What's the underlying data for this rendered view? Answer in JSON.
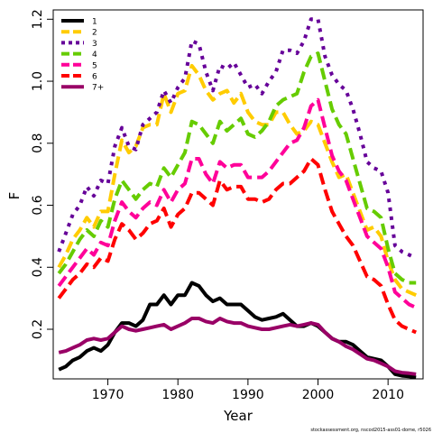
{
  "chart_data": {
    "type": "line",
    "xlabel": "Year",
    "ylabel": "F",
    "xlim": [
      1962.2,
      2015
    ],
    "ylim": [
      0.04,
      1.23
    ],
    "xticks": [
      1970,
      1980,
      1990,
      2000,
      2010
    ],
    "yticks": [
      0.2,
      0.4,
      0.6,
      0.8,
      1.0,
      1.2
    ],
    "yticklabels": [
      "0.2",
      "0.4",
      "0.6",
      "0.8",
      "1.0",
      "1.2"
    ],
    "grid": false,
    "legend_position": "top-left",
    "x": [
      1963,
      1964,
      1965,
      1966,
      1967,
      1968,
      1969,
      1970,
      1971,
      1972,
      1973,
      1974,
      1975,
      1976,
      1977,
      1978,
      1979,
      1980,
      1981,
      1982,
      1983,
      1984,
      1985,
      1986,
      1987,
      1988,
      1989,
      1990,
      1991,
      1992,
      1993,
      1994,
      1995,
      1996,
      1997,
      1998,
      1999,
      2000,
      2001,
      2002,
      2003,
      2004,
      2005,
      2006,
      2007,
      2008,
      2009,
      2010,
      2011,
      2012,
      2013,
      2014
    ],
    "series": [
      {
        "name": "1",
        "color": "#000000",
        "dash": "solid",
        "values": [
          0.07,
          0.08,
          0.1,
          0.11,
          0.13,
          0.14,
          0.13,
          0.15,
          0.19,
          0.22,
          0.22,
          0.21,
          0.23,
          0.28,
          0.28,
          0.31,
          0.28,
          0.31,
          0.31,
          0.35,
          0.34,
          0.31,
          0.29,
          0.3,
          0.28,
          0.28,
          0.28,
          0.26,
          0.24,
          0.23,
          0.235,
          0.24,
          0.25,
          0.23,
          0.21,
          0.21,
          0.22,
          0.21,
          0.19,
          0.17,
          0.16,
          0.16,
          0.15,
          0.13,
          0.11,
          0.105,
          0.1,
          0.08,
          0.055,
          0.05,
          0.048,
          0.045
        ]
      },
      {
        "name": "2",
        "color": "#FFCC00",
        "dash": "dash",
        "values": [
          0.4,
          0.44,
          0.49,
          0.52,
          0.56,
          0.53,
          0.58,
          0.58,
          0.7,
          0.81,
          0.77,
          0.79,
          0.85,
          0.86,
          0.86,
          0.96,
          0.9,
          0.96,
          0.97,
          1.05,
          1.02,
          0.97,
          0.94,
          0.96,
          0.97,
          0.93,
          0.96,
          0.9,
          0.87,
          0.86,
          0.86,
          0.9,
          0.9,
          0.86,
          0.83,
          0.84,
          0.87,
          0.86,
          0.8,
          0.74,
          0.69,
          0.7,
          0.64,
          0.58,
          0.52,
          0.53,
          0.5,
          0.42,
          0.36,
          0.33,
          0.32,
          0.31
        ]
      },
      {
        "name": "3",
        "color": "#660099",
        "dash": "dot",
        "values": [
          0.45,
          0.51,
          0.57,
          0.6,
          0.66,
          0.63,
          0.68,
          0.67,
          0.79,
          0.85,
          0.79,
          0.78,
          0.86,
          0.88,
          0.9,
          0.97,
          0.93,
          0.98,
          1.01,
          1.13,
          1.12,
          1.03,
          0.97,
          1.05,
          1.04,
          1.06,
          1.02,
          0.98,
          0.99,
          0.96,
          1.0,
          1.03,
          1.1,
          1.1,
          1.09,
          1.13,
          1.2,
          1.2,
          1.08,
          1.02,
          0.99,
          0.97,
          0.91,
          0.83,
          0.74,
          0.72,
          0.71,
          0.64,
          0.47,
          0.45,
          0.44,
          0.43
        ]
      },
      {
        "name": "4",
        "color": "#66CC00",
        "dash": "dash",
        "values": [
          0.38,
          0.41,
          0.45,
          0.49,
          0.52,
          0.5,
          0.55,
          0.53,
          0.62,
          0.68,
          0.65,
          0.62,
          0.65,
          0.67,
          0.66,
          0.72,
          0.69,
          0.73,
          0.77,
          0.87,
          0.86,
          0.83,
          0.8,
          0.87,
          0.84,
          0.86,
          0.88,
          0.83,
          0.82,
          0.84,
          0.87,
          0.92,
          0.94,
          0.95,
          0.96,
          1.03,
          1.08,
          1.09,
          1.0,
          0.91,
          0.86,
          0.83,
          0.75,
          0.67,
          0.59,
          0.58,
          0.56,
          0.46,
          0.38,
          0.36,
          0.35,
          0.35
        ]
      },
      {
        "name": "5",
        "color": "#FF0099",
        "dash": "dash",
        "values": [
          0.34,
          0.37,
          0.4,
          0.43,
          0.46,
          0.44,
          0.48,
          0.47,
          0.55,
          0.61,
          0.58,
          0.56,
          0.59,
          0.61,
          0.6,
          0.65,
          0.61,
          0.65,
          0.67,
          0.75,
          0.75,
          0.7,
          0.67,
          0.74,
          0.72,
          0.73,
          0.73,
          0.69,
          0.69,
          0.69,
          0.71,
          0.74,
          0.77,
          0.8,
          0.81,
          0.85,
          0.92,
          0.94,
          0.85,
          0.76,
          0.71,
          0.68,
          0.62,
          0.56,
          0.5,
          0.48,
          0.46,
          0.4,
          0.32,
          0.3,
          0.28,
          0.27
        ]
      },
      {
        "name": "6",
        "color": "#FF0000",
        "dash": "dash",
        "values": [
          0.3,
          0.33,
          0.36,
          0.38,
          0.41,
          0.4,
          0.43,
          0.42,
          0.49,
          0.54,
          0.52,
          0.49,
          0.51,
          0.54,
          0.55,
          0.59,
          0.53,
          0.57,
          0.59,
          0.64,
          0.64,
          0.62,
          0.6,
          0.68,
          0.65,
          0.66,
          0.66,
          0.62,
          0.62,
          0.61,
          0.62,
          0.65,
          0.67,
          0.67,
          0.69,
          0.71,
          0.75,
          0.73,
          0.65,
          0.58,
          0.54,
          0.5,
          0.47,
          0.42,
          0.37,
          0.36,
          0.34,
          0.28,
          0.23,
          0.21,
          0.2,
          0.19
        ]
      },
      {
        "name": "7+",
        "color": "#990066",
        "dash": "solid",
        "values": [
          0.125,
          0.13,
          0.14,
          0.15,
          0.165,
          0.17,
          0.165,
          0.17,
          0.19,
          0.21,
          0.2,
          0.195,
          0.2,
          0.205,
          0.21,
          0.215,
          0.2,
          0.21,
          0.22,
          0.235,
          0.235,
          0.225,
          0.22,
          0.235,
          0.225,
          0.22,
          0.22,
          0.21,
          0.205,
          0.2,
          0.2,
          0.205,
          0.21,
          0.215,
          0.21,
          0.215,
          0.22,
          0.215,
          0.19,
          0.17,
          0.16,
          0.145,
          0.135,
          0.12,
          0.105,
          0.1,
          0.09,
          0.08,
          0.065,
          0.06,
          0.058,
          0.055
        ]
      }
    ]
  },
  "footer": "stockassessment.org, nscod2015-ass01-dome, r5026"
}
